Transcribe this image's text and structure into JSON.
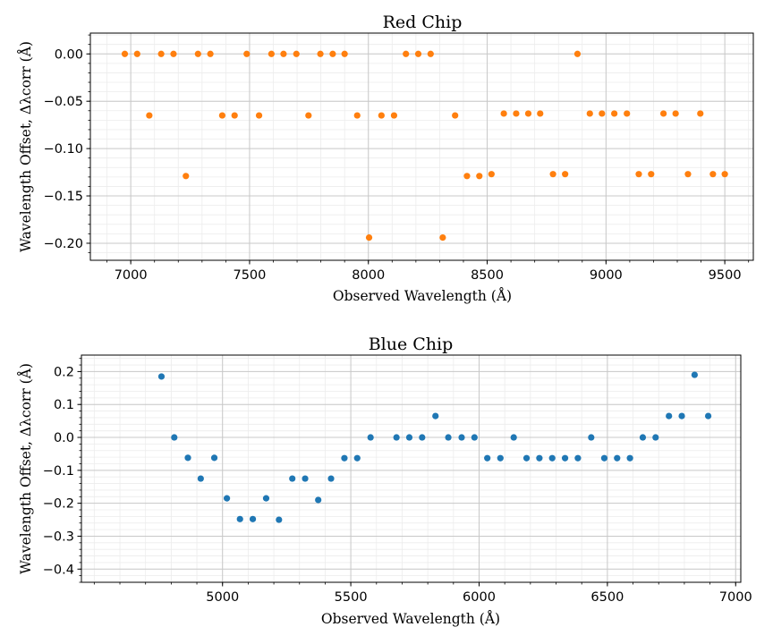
{
  "colors": {
    "red_chip_points": "#ff7f0e",
    "blue_chip_points": "#1f77b4",
    "major_grid": "#c8c8c8",
    "minor_grid": "#ececec",
    "axes": "#000000"
  },
  "chart_data": [
    {
      "type": "scatter",
      "title": "Red Chip",
      "xlabel": "Observed Wavelength (Å)",
      "ylabel": "Wavelength Offset, Δλcorr  (Å)",
      "xlim": [
        6830,
        9620
      ],
      "ylim": [
        -0.218,
        0.022
      ],
      "xticks": [
        7000,
        7500,
        8000,
        8500,
        9000,
        9500
      ],
      "xtick_labels": [
        "7000",
        "7500",
        "8000",
        "8500",
        "9000",
        "9500"
      ],
      "yticks": [
        0.0,
        -0.05,
        -0.1,
        -0.15,
        -0.2
      ],
      "ytick_labels": [
        "0.00",
        "−0.05",
        "−0.10",
        "−0.15",
        "−0.20"
      ],
      "grid": true,
      "minor_grid": true,
      "series": [
        {
          "x": [
            6975,
            7027,
            7078,
            7128,
            7180,
            7232,
            7283,
            7335,
            7385,
            7437,
            7488,
            7540,
            7592,
            7643,
            7697,
            7748,
            7798,
            7850,
            7900,
            7953,
            8003,
            8055,
            8108,
            8158,
            8210,
            8262,
            8313,
            8365,
            8415,
            8467,
            8518,
            8570,
            8622,
            8673,
            8723,
            8777,
            8828,
            8880,
            8932,
            8983,
            9035,
            9088,
            9138,
            9190,
            9242,
            9293,
            9345,
            9397,
            9450,
            9500
          ],
          "y": [
            0.0,
            0.0,
            -0.065,
            0.0,
            0.0,
            -0.129,
            0.0,
            0.0,
            -0.065,
            -0.065,
            0.0,
            -0.065,
            0.0,
            0.0,
            0.0,
            -0.065,
            0.0,
            0.0,
            0.0,
            -0.065,
            -0.194,
            -0.065,
            -0.065,
            0.0,
            0.0,
            0.0,
            -0.194,
            -0.065,
            -0.129,
            -0.129,
            -0.127,
            -0.063,
            -0.063,
            -0.063,
            -0.063,
            -0.127,
            -0.127,
            0.0,
            -0.063,
            -0.063,
            -0.063,
            -0.063,
            -0.127,
            -0.127,
            -0.063,
            -0.063,
            -0.127,
            -0.063,
            -0.127,
            -0.127
          ]
        }
      ]
    },
    {
      "type": "scatter",
      "title": "Blue Chip",
      "xlabel": "Observed Wavelength (Å)",
      "ylabel": "Wavelength Offset, Δλcorr  (Å)",
      "xlim": [
        4450,
        7020
      ],
      "ylim": [
        -0.44,
        0.25
      ],
      "xticks": [
        5000,
        5500,
        6000,
        6500,
        7000
      ],
      "xtick_labels": [
        "5000",
        "5500",
        "6000",
        "6500",
        "7000"
      ],
      "yticks": [
        0.2,
        0.1,
        0.0,
        -0.1,
        -0.2,
        -0.3,
        -0.4
      ],
      "ytick_labels": [
        "0.2",
        "0.1",
        "0.0",
        "−0.1",
        "−0.2",
        "−0.3",
        "−0.4"
      ],
      "grid": true,
      "minor_grid": true,
      "series": [
        {
          "x": [
            4762,
            4812,
            4865,
            4915,
            4968,
            5017,
            5068,
            5118,
            5170,
            5220,
            5272,
            5322,
            5373,
            5423,
            5475,
            5525,
            5577,
            5678,
            5728,
            5778,
            5830,
            5880,
            5932,
            5982,
            6032,
            6083,
            6135,
            6185,
            6235,
            6285,
            6335,
            6385,
            6437,
            6488,
            6538,
            6588,
            6638,
            6688,
            6740,
            6790,
            6840,
            6893
          ],
          "y": [
            0.185,
            0.0,
            -0.062,
            -0.125,
            -0.062,
            -0.185,
            -0.248,
            -0.248,
            -0.185,
            -0.25,
            -0.125,
            -0.125,
            -0.19,
            -0.125,
            -0.063,
            -0.063,
            0.0,
            0.0,
            0.0,
            0.0,
            0.065,
            0.0,
            0.0,
            0.0,
            -0.063,
            -0.063,
            0.0,
            -0.063,
            -0.063,
            -0.063,
            -0.063,
            -0.063,
            0.0,
            -0.063,
            -0.063,
            -0.063,
            0.0,
            0.0,
            0.065,
            0.065,
            0.19,
            0.065
          ]
        }
      ]
    }
  ]
}
